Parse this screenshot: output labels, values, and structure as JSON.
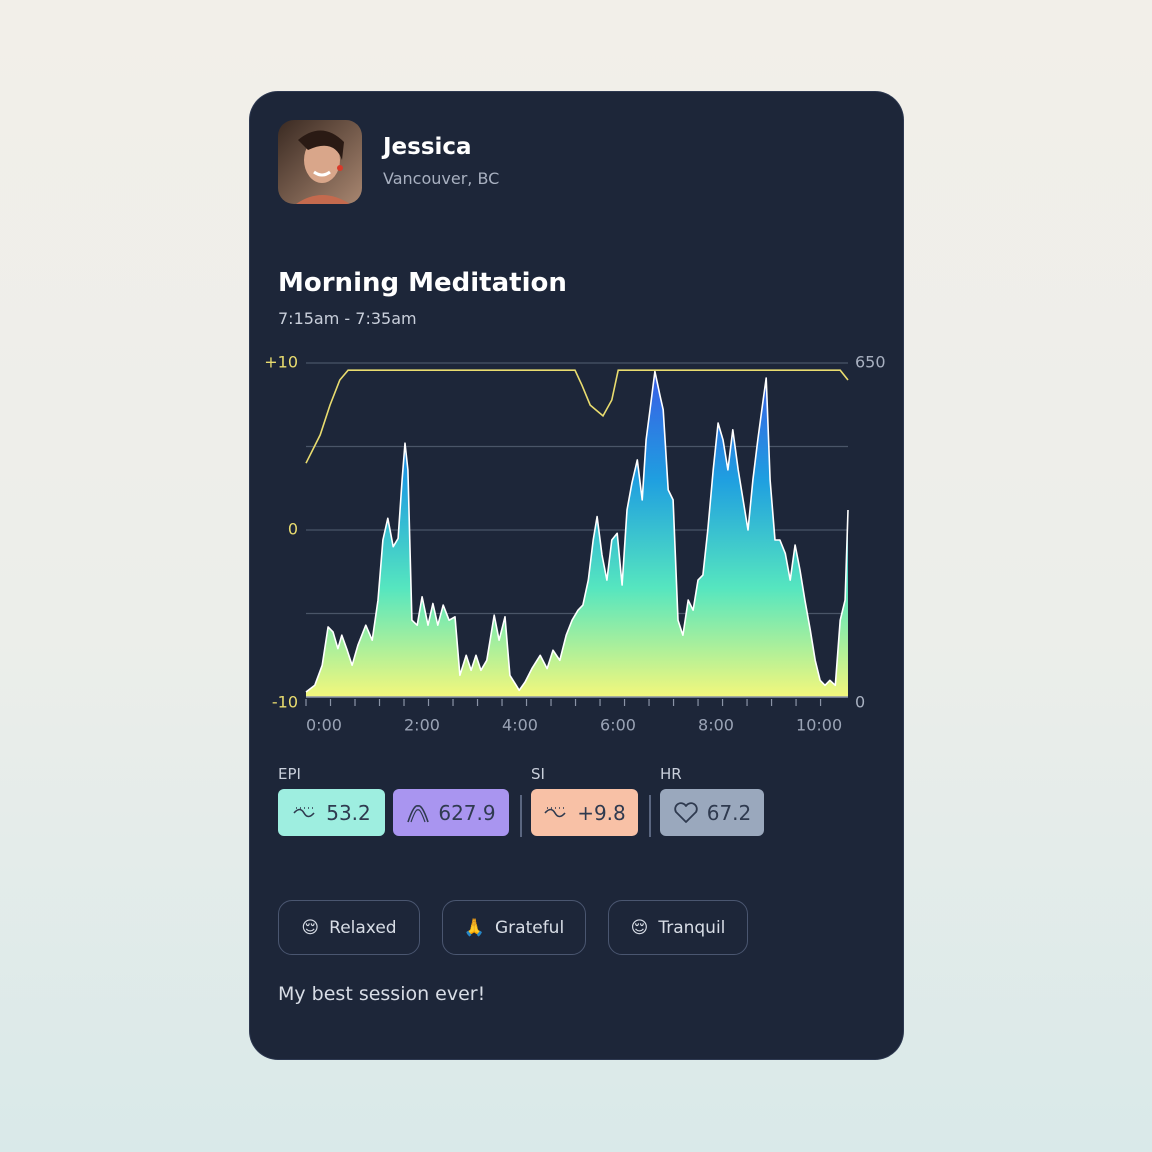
{
  "profile": {
    "name": "Jessica",
    "location": "Vancouver, BC"
  },
  "session": {
    "title": "Morning Meditation",
    "time": "7:15am - 7:35am"
  },
  "chart_data": {
    "type": "combo",
    "xlim": [
      0,
      11.06
    ],
    "ylim": [
      -10,
      10
    ],
    "y2lim": [
      0,
      650
    ],
    "xticks": [
      {
        "value": 0,
        "label": "0:00"
      },
      {
        "value": 2,
        "label": "2:00"
      },
      {
        "value": 4,
        "label": "4:00"
      },
      {
        "value": 6,
        "label": "6:00"
      },
      {
        "value": 8,
        "label": "8:00"
      },
      {
        "value": 10,
        "label": "10:00"
      }
    ],
    "minor_xticks": [
      0,
      0.5,
      1,
      1.5,
      2,
      2.5,
      3,
      3.5,
      4,
      4.5,
      5,
      5.5,
      6,
      6.5,
      7,
      7.5,
      8,
      8.5,
      9,
      9.5,
      10,
      10.5
    ],
    "yticks": [
      {
        "value": 10,
        "label": "+10"
      },
      0,
      -10
    ],
    "minor_yticks": [
      5,
      -5
    ],
    "y2ticks": [
      650,
      0
    ],
    "grid": true,
    "series": [
      {
        "type": "area",
        "color": "#ffffff",
        "gradient": [
          "#f3f77c",
          "#56e6bf",
          "#1f9fe0",
          "#3a5ce6"
        ],
        "x": [
          0,
          0.18,
          0.33,
          0.45,
          0.55,
          0.65,
          0.73,
          0.84,
          0.94,
          1.06,
          1.22,
          1.35,
          1.47,
          1.57,
          1.67,
          1.78,
          1.88,
          1.96,
          2.02,
          2.08,
          2.16,
          2.27,
          2.37,
          2.49,
          2.59,
          2.69,
          2.8,
          2.92,
          3.04,
          3.14,
          3.27,
          3.37,
          3.47,
          3.57,
          3.69,
          3.84,
          3.94,
          4.06,
          4.16,
          4.29,
          4.35,
          4.47,
          4.61,
          4.78,
          4.92,
          5.04,
          5.18,
          5.31,
          5.43,
          5.55,
          5.65,
          5.76,
          5.86,
          5.94,
          6.04,
          6.14,
          6.24,
          6.35,
          6.45,
          6.55,
          6.65,
          6.76,
          6.86,
          6.94,
          7.02,
          7.12,
          7.22,
          7.29,
          7.39,
          7.49,
          7.59,
          7.69,
          7.8,
          7.9,
          8,
          8.1,
          8.2,
          8.31,
          8.41,
          8.51,
          8.61,
          8.71,
          8.82,
          8.92,
          9.02,
          9.12,
          9.22,
          9.33,
          9.39,
          9.47,
          9.57,
          9.67,
          9.78,
          9.88,
          9.98,
          10.08,
          10.18,
          10.29,
          10.39,
          10.49,
          10.59,
          10.69,
          10.8,
          10.9,
          11,
          11.06
        ],
        "values": [
          -9.7,
          -9.3,
          -8.1,
          -5.8,
          -6.1,
          -7.1,
          -6.3,
          -7.2,
          -8.1,
          -6.9,
          -5.7,
          -6.6,
          -4.2,
          -0.6,
          0.7,
          -1.0,
          -0.5,
          3.0,
          5.2,
          3.6,
          -5.4,
          -5.7,
          -4.0,
          -5.7,
          -4.4,
          -5.7,
          -4.5,
          -5.4,
          -5.2,
          -8.7,
          -7.5,
          -8.4,
          -7.5,
          -8.4,
          -7.8,
          -5.1,
          -6.6,
          -5.2,
          -8.7,
          -9.3,
          -9.6,
          -9.1,
          -8.3,
          -7.5,
          -8.3,
          -7.2,
          -7.8,
          -6.3,
          -5.4,
          -4.8,
          -4.5,
          -3.0,
          -0.6,
          0.8,
          -1.5,
          -3.0,
          -0.6,
          -0.2,
          -3.3,
          1.2,
          2.8,
          4.2,
          1.8,
          5.4,
          7.2,
          9.5,
          8.1,
          7.2,
          2.4,
          1.8,
          -5.4,
          -6.3,
          -4.2,
          -4.8,
          -3.0,
          -2.7,
          0.0,
          3.6,
          6.4,
          5.4,
          3.6,
          6.0,
          3.6,
          1.8,
          0.0,
          3.0,
          5.4,
          7.8,
          9.1,
          3.0,
          -0.6,
          -0.6,
          -1.4,
          -3.0,
          -0.9,
          -2.4,
          -4.2,
          -6.0,
          -7.8,
          -9.0,
          -9.3,
          -9.0,
          -9.3,
          -5.4,
          -4.2,
          1.2
        ]
      },
      {
        "type": "line",
        "axis": "y2",
        "color": "#e9dc6f",
        "x": [
          0,
          0.29,
          0.49,
          0.69,
          0.86,
          5.49,
          5.63,
          5.8,
          6.06,
          6.24,
          6.37,
          10.9,
          11.06
        ],
        "values": [
          455,
          510,
          568,
          617,
          636,
          636,
          607,
          568,
          547,
          578,
          636,
          636,
          617
        ]
      }
    ]
  },
  "metrics": [
    {
      "group": "EPI",
      "chips": [
        {
          "value": "53.2"
        },
        {
          "value": "627.9"
        }
      ]
    },
    {
      "group": "SI",
      "chips": [
        {
          "value": "+9.8"
        }
      ]
    },
    {
      "group": "HR",
      "chips": [
        {
          "value": "67.2"
        }
      ]
    }
  ],
  "tags": [
    {
      "emoji": "😌",
      "label": "Relaxed"
    },
    {
      "emoji": "🙏",
      "label": "Grateful"
    },
    {
      "emoji": "😌",
      "label": "Tranquil"
    }
  ],
  "note": "My best session ever!"
}
